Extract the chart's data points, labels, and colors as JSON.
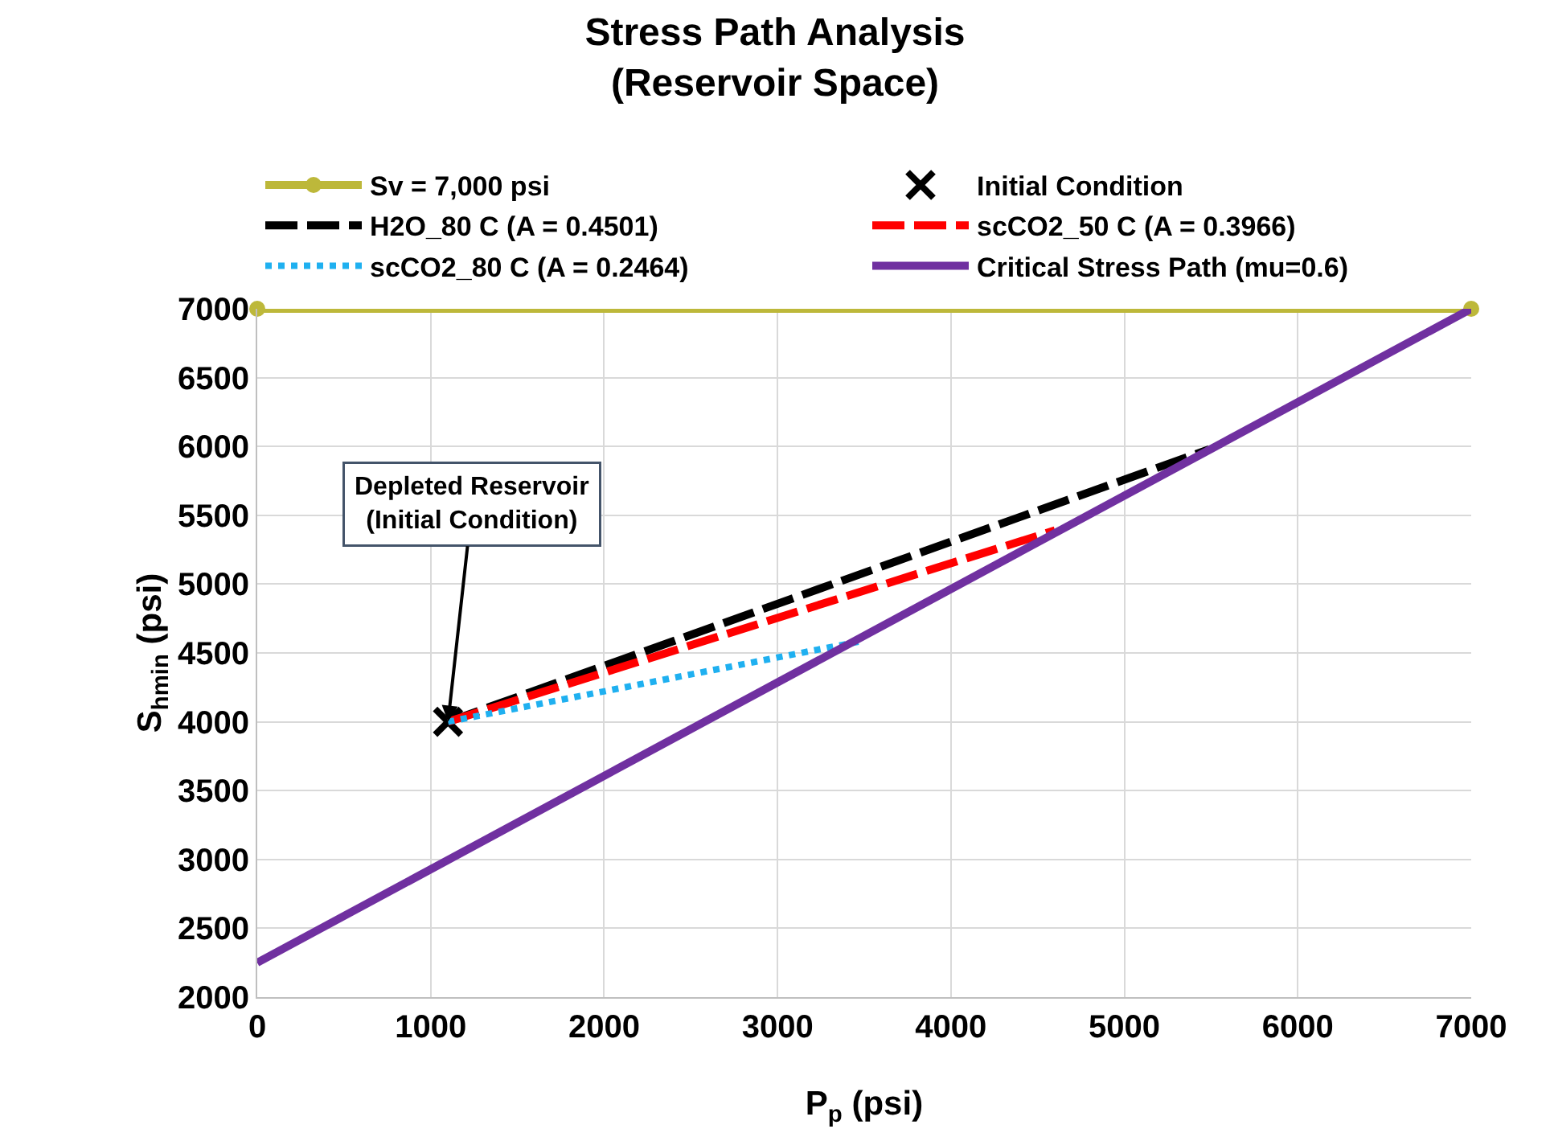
{
  "chart_data": {
    "type": "line",
    "title": "Stress Path Analysis\n(Reservoir Space)",
    "xlabel": "P$_{p}$ (psi)",
    "ylabel": "S$_{hmin}$ (psi)",
    "xlim": [
      0,
      7000
    ],
    "xticks": [
      0,
      1000,
      2000,
      3000,
      4000,
      5000,
      6000,
      7000
    ],
    "ylim": [
      2000,
      7000
    ],
    "yticks": [
      2000,
      2500,
      3000,
      3500,
      4000,
      4500,
      5000,
      5500,
      6000,
      6500,
      7000
    ],
    "grid": true,
    "legend": "top",
    "series": [
      {
        "name": "Sv = 7,000 psi",
        "color": "#bdb83a",
        "x": [
          0,
          7000
        ],
        "values": [
          7000,
          7000
        ],
        "marker": "circle",
        "line_style": "solid"
      },
      {
        "name": "Initial Condition",
        "type": "scatter",
        "color": "#000000",
        "x": [
          1100
        ],
        "values": [
          4000
        ],
        "marker": "cross"
      },
      {
        "name": "H2O_80 C (A = 0.4501)",
        "color": "#000000",
        "x": [
          1100,
          5490
        ],
        "values": [
          4000,
          5980
        ],
        "marker": "none",
        "line_style": "dashed"
      },
      {
        "name": "scCO2_50 C (A = 0.3966)",
        "color": "#ff0000",
        "x": [
          1100,
          4600
        ],
        "values": [
          4000,
          5390
        ],
        "marker": "none",
        "line_style": "dashed"
      },
      {
        "name": "scCO2_80 C (A = 0.2464)",
        "color": "#1fb0f0",
        "x": [
          1100,
          3500
        ],
        "values": [
          4000,
          4590
        ],
        "marker": "none",
        "line_style": "dotted"
      },
      {
        "name": "Critical Stress Path (mu=0.6)",
        "color": "#7030a0",
        "x": [
          0,
          7000
        ],
        "values": [
          2250,
          7000
        ],
        "marker": "none",
        "line_style": "solid"
      }
    ],
    "annotations": [
      {
        "text": "Depleted Reservoir\n(Initial Condition)",
        "x": 1100,
        "y": 4000
      }
    ]
  }
}
